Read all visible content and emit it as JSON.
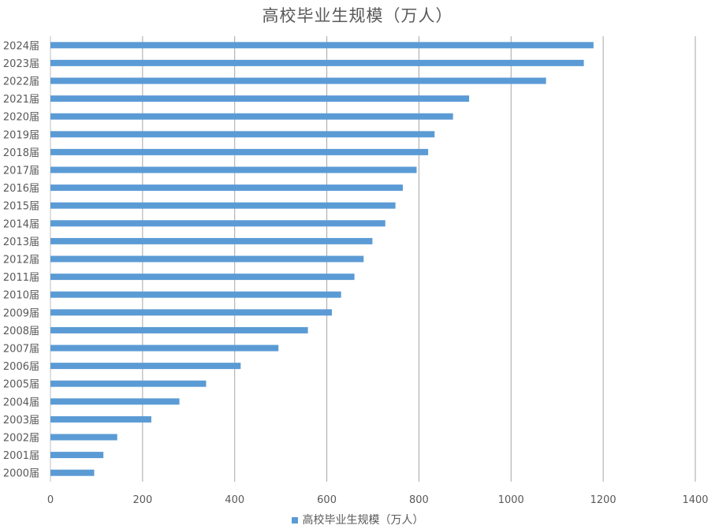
{
  "colors": {
    "bar": "#5b9bd5",
    "grid": "#a6a6a6",
    "text": "#595959"
  },
  "chart_data": {
    "type": "bar",
    "orientation": "horizontal",
    "title": "高校毕业生规模（万人）",
    "xlabel": "",
    "ylabel": "",
    "xlim": [
      0,
      1400
    ],
    "xticks": [
      0,
      200,
      400,
      600,
      800,
      1000,
      1200,
      1400
    ],
    "grid": true,
    "legend_position": "bottom",
    "categories": [
      "2000届",
      "2001届",
      "2002届",
      "2003届",
      "2004届",
      "2005届",
      "2006届",
      "2007届",
      "2008届",
      "2009届",
      "2010届",
      "2011届",
      "2012届",
      "2013届",
      "2014届",
      "2015届",
      "2016届",
      "2017届",
      "2018届",
      "2019届",
      "2020届",
      "2021届",
      "2022届",
      "2023届",
      "2024届"
    ],
    "series": [
      {
        "name": "高校毕业生规模（万人）",
        "values": [
          95,
          115,
          145,
          219,
          280,
          338,
          413,
          495,
          559,
          611,
          631,
          660,
          680,
          699,
          727,
          749,
          765,
          795,
          820,
          834,
          874,
          909,
          1076,
          1158,
          1179
        ]
      }
    ]
  }
}
